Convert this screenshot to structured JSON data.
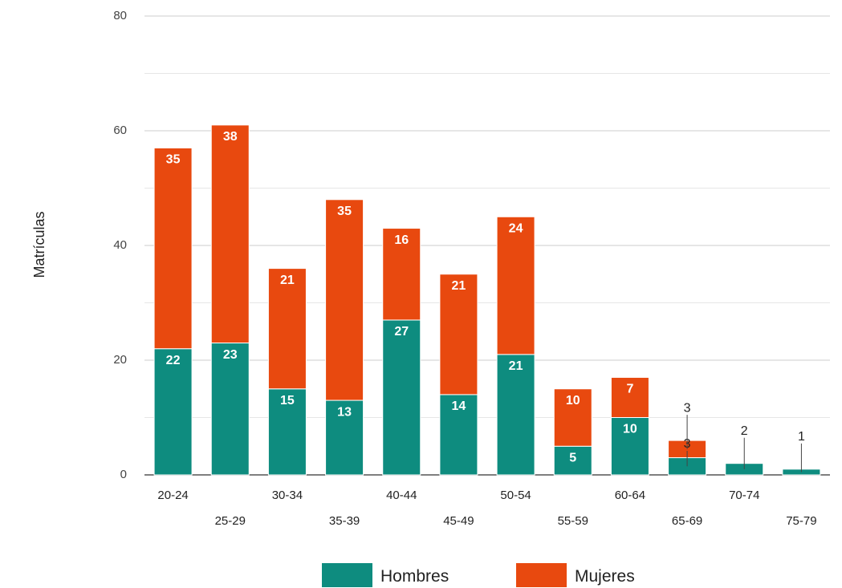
{
  "chart_data": {
    "type": "bar",
    "stacked": true,
    "ylabel": "Matrículas",
    "xlabel": "",
    "ylim": [
      0,
      80
    ],
    "yticks": [
      0,
      20,
      40,
      60,
      80
    ],
    "grid": true,
    "legend_position": "bottom",
    "categories": [
      "20-24",
      "25-29",
      "30-34",
      "35-39",
      "40-44",
      "45-49",
      "50-54",
      "55-59",
      "60-64",
      "65-69",
      "70-74",
      "75-79"
    ],
    "series": [
      {
        "name": "Hombres",
        "color": "#0e8c7f",
        "values": [
          22,
          23,
          15,
          13,
          27,
          14,
          21,
          5,
          10,
          3,
          2,
          1
        ]
      },
      {
        "name": "Mujeres",
        "color": "#e8490f",
        "values": [
          35,
          38,
          21,
          35,
          16,
          21,
          24,
          10,
          7,
          3,
          0,
          0
        ]
      }
    ]
  }
}
